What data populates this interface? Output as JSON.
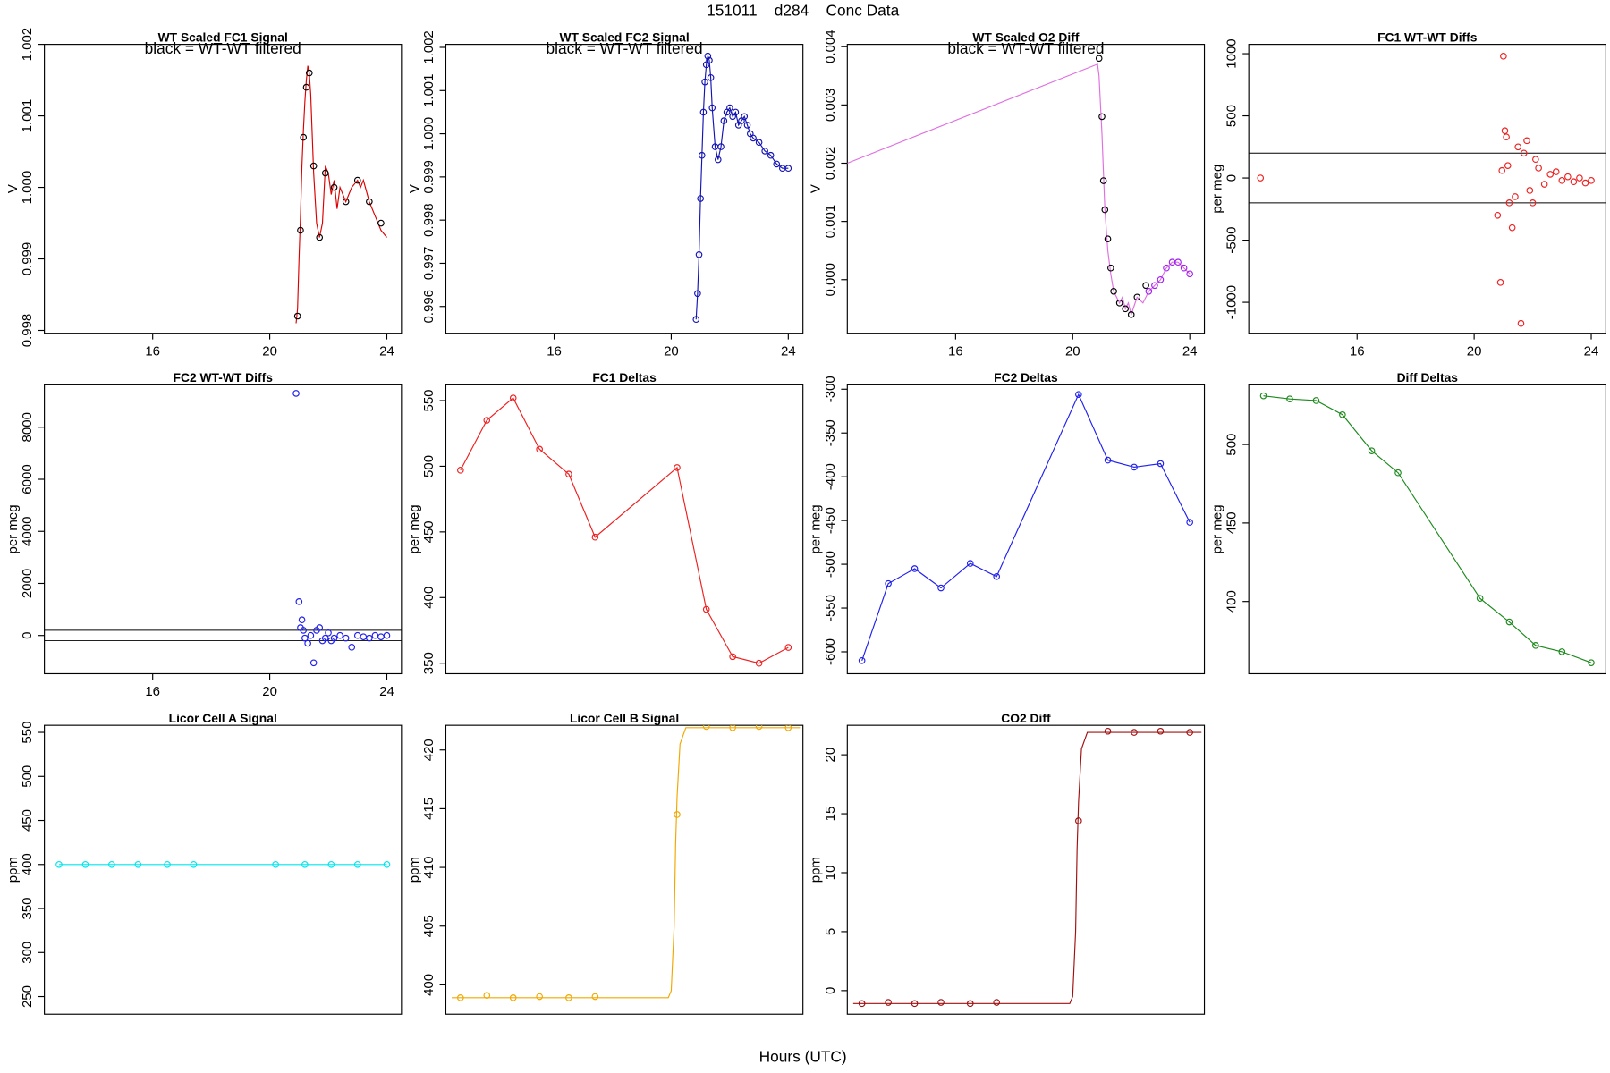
{
  "title": "151011    d284    Conc Data",
  "xlabel": "Hours (UTC)",
  "chart_data": [
    {
      "type": "line",
      "title": "WT Scaled FC1 Signal",
      "annotation": "black = WT-WT filtered",
      "ylabel": "V",
      "xlim": [
        12.3,
        24.5
      ],
      "xticks": [
        16,
        20,
        24
      ],
      "ylim": [
        0.99796,
        1.002
      ],
      "yticks": [
        0.998,
        0.999,
        {
          "value": 1,
          "label": "1.000"
        },
        1.001,
        1.002
      ],
      "series": [
        {
          "color": "#dd0000",
          "style": "line",
          "x": [
            20.9,
            20.95,
            21.0,
            21.05,
            21.1,
            21.15,
            21.2,
            21.25,
            21.3,
            21.35,
            21.4,
            21.5,
            21.6,
            21.7,
            21.8,
            21.9,
            22.0,
            22.1,
            22.2,
            22.3,
            22.4,
            22.5,
            22.6,
            22.8,
            23.0,
            23.1,
            23.2,
            23.4,
            23.6,
            23.8,
            24.0
          ],
          "values": [
            0.9981,
            0.9983,
            0.999,
            0.9996,
            1.0003,
            1.0008,
            1.0012,
            1.0015,
            1.0017,
            1.0016,
            1.0013,
            1.0002,
            0.9995,
            0.9993,
            0.9995,
            1.0003,
            1.0002,
            0.9999,
            1.0001,
            0.9997,
            1.0,
            0.9999,
            0.9998,
            1.0,
            1.0001,
            1.0,
            1.0001,
            0.9998,
            0.9996,
            0.9994,
            0.9993
          ]
        },
        {
          "color": "#000000",
          "style": "points",
          "x": [
            20.95,
            21.05,
            21.15,
            21.25,
            21.35,
            21.5,
            21.7,
            21.9,
            22.2,
            22.6,
            23.0,
            23.4,
            23.8
          ],
          "values": [
            0.9982,
            0.9994,
            1.0007,
            1.0014,
            1.0016,
            1.0003,
            0.9993,
            1.0002,
            1.0,
            0.9998,
            1.0001,
            0.9998,
            0.9995
          ]
        }
      ]
    },
    {
      "type": "line",
      "title": "WT Scaled FC2 Signal",
      "annotation": "black = WT-WT filtered",
      "ylabel": "V",
      "xlim": [
        12.3,
        24.5
      ],
      "xticks": [
        16,
        20,
        24
      ],
      "ylim": [
        0.99538,
        1.00207
      ],
      "yticks": [
        0.996,
        0.997,
        0.998,
        0.999,
        {
          "value": 1,
          "label": "1.000"
        },
        1.001,
        1.002
      ],
      "series": [
        {
          "color": "#1414b4",
          "style": "line+points",
          "x": [
            20.85,
            20.9,
            20.95,
            21.0,
            21.05,
            21.1,
            21.15,
            21.2,
            21.25,
            21.3,
            21.35,
            21.4,
            21.5,
            21.6,
            21.7,
            21.8,
            21.9,
            22.0,
            22.1,
            22.2,
            22.3,
            22.4,
            22.5,
            22.6,
            22.7,
            22.8,
            23.0,
            23.2,
            23.4,
            23.6,
            23.8,
            24.0
          ],
          "values": [
            0.9957,
            0.9963,
            0.9972,
            0.9985,
            0.9995,
            1.0005,
            1.0012,
            1.0016,
            1.0018,
            1.0017,
            1.0013,
            1.0006,
            0.9997,
            0.9994,
            0.9997,
            1.0003,
            1.0005,
            1.0006,
            1.0004,
            1.0005,
            1.0002,
            1.0003,
            1.0004,
            1.0002,
            1.0,
            0.9999,
            0.9998,
            0.9996,
            0.9995,
            0.9993,
            0.9992,
            0.9992
          ]
        }
      ]
    },
    {
      "type": "line",
      "title": "WT Scaled O2 Diff",
      "annotation": "black = WT-WT filtered",
      "ylabel": "V",
      "xlim": [
        12.3,
        24.5
      ],
      "xticks": [
        16,
        20,
        24
      ],
      "ylim": [
        -0.00092,
        0.00404
      ],
      "yticks": [
        {
          "value": 0,
          "label": "0.000"
        },
        0.001,
        0.002,
        0.003,
        0.004
      ],
      "series": [
        {
          "color": "#e070e0",
          "style": "line",
          "x": [
            12.3,
            20.85,
            20.9,
            21.0,
            21.1,
            21.2,
            21.3,
            21.4,
            21.5,
            21.6,
            21.7,
            21.8,
            21.9,
            22.0,
            22.2,
            22.4,
            22.6,
            22.8,
            23.0,
            23.2,
            23.4,
            23.6,
            23.8,
            24.0
          ],
          "values": [
            0.002,
            0.0037,
            0.0035,
            0.0025,
            0.0012,
            0.0005,
            0.0001,
            -0.0002,
            -0.0003,
            -0.0004,
            -0.0003,
            -0.0005,
            -0.0004,
            -0.0006,
            -0.0003,
            -0.0004,
            -0.0002,
            -0.0001,
            0,
            0.0002,
            0.0003,
            0.0003,
            0.0002,
            0.0001
          ]
        },
        {
          "color": "#000000",
          "style": "points",
          "x": [
            20.9,
            21.0,
            21.05,
            21.1,
            21.2,
            21.3,
            21.4,
            21.6,
            21.8,
            22.0,
            22.2,
            22.5
          ],
          "values": [
            0.0038,
            0.0028,
            0.0017,
            0.0012,
            0.0007,
            0.0002,
            -0.0002,
            -0.0004,
            -0.0005,
            -0.0006,
            -0.0003,
            -0.0001
          ]
        },
        {
          "color": "#a020f0",
          "style": "points",
          "x": [
            22.6,
            22.8,
            23.0,
            23.2,
            23.4,
            23.6,
            23.8,
            24.0
          ],
          "values": [
            -0.0002,
            -0.0001,
            0,
            0.0002,
            0.0003,
            0.0003,
            0.0002,
            0.0001
          ]
        }
      ]
    },
    {
      "type": "scatter",
      "title": "FC1 WT-WT Diffs",
      "ylabel": "per meg",
      "xlim": [
        12.3,
        24.5
      ],
      "xticks": [
        16,
        20,
        24
      ],
      "ylim": [
        -1249,
        1075
      ],
      "yticks": [
        -1000,
        -500,
        0,
        500,
        1000
      ],
      "hlines": [
        200,
        -200
      ],
      "series": [
        {
          "color": "#ee2020",
          "style": "points",
          "x": [
            12.7,
            20.8,
            20.9,
            20.95,
            21.0,
            21.05,
            21.1,
            21.15,
            21.2,
            21.3,
            21.4,
            21.5,
            21.6,
            21.7,
            21.8,
            21.9,
            22.0,
            22.1,
            22.2,
            22.4,
            22.6,
            22.8,
            23.0,
            23.2,
            23.4,
            23.6,
            23.8,
            24.0
          ],
          "values": [
            0,
            -300,
            -840,
            60,
            980,
            380,
            330,
            100,
            -200,
            -400,
            -150,
            250,
            -1170,
            200,
            300,
            -100,
            -200,
            150,
            80,
            -50,
            30,
            50,
            -20,
            10,
            -30,
            0,
            -40,
            -20
          ]
        }
      ]
    },
    {
      "type": "scatter",
      "title": "FC2 WT-WT Diffs",
      "ylabel": "per meg",
      "xlim": [
        12.3,
        24.5
      ],
      "xticks": [
        16,
        20,
        24
      ],
      "ylim": [
        -1468,
        9627
      ],
      "yticks": [
        0,
        2000,
        4000,
        6000,
        8000
      ],
      "hlines": [
        200,
        -200
      ],
      "series": [
        {
          "color": "#2020ee",
          "style": "points",
          "x": [
            20.9,
            21.0,
            21.05,
            21.1,
            21.15,
            21.2,
            21.3,
            21.4,
            21.5,
            21.6,
            21.7,
            21.8,
            21.9,
            22.0,
            22.1,
            22.2,
            22.4,
            22.6,
            22.8,
            23.0,
            23.2,
            23.4,
            23.6,
            23.8,
            24.0
          ],
          "values": [
            9300,
            1300,
            300,
            600,
            200,
            -100,
            -300,
            0,
            -1050,
            200,
            300,
            -200,
            -100,
            100,
            -200,
            -100,
            0,
            -100,
            -450,
            0,
            -50,
            -100,
            0,
            -50,
            0
          ]
        }
      ]
    },
    {
      "type": "line",
      "title": "FC1 Deltas",
      "ylabel": "per meg",
      "xlim": [
        12.3,
        24.5
      ],
      "ylim": [
        342,
        562
      ],
      "yticks": [
        350,
        400,
        450,
        500,
        550
      ],
      "series": [
        {
          "color": "#ee2020",
          "style": "line+points",
          "x": [
            12.8,
            13.7,
            14.6,
            15.5,
            16.5,
            17.4,
            20.2,
            21.2,
            22.1,
            23.0,
            24.0
          ],
          "values": [
            497,
            535,
            552,
            513,
            494,
            446,
            499,
            391,
            355,
            350,
            362
          ]
        }
      ]
    },
    {
      "type": "line",
      "title": "FC2 Deltas",
      "ylabel": "per meg",
      "xlim": [
        12.3,
        24.5
      ],
      "ylim": [
        -625,
        -295
      ],
      "yticks": [
        -600,
        -550,
        -500,
        -450,
        -400,
        -350,
        -300
      ],
      "series": [
        {
          "color": "#2020ee",
          "style": "line+points",
          "x": [
            12.8,
            13.7,
            14.6,
            15.5,
            16.5,
            17.4,
            20.2,
            21.2,
            22.1,
            23.0,
            24.0
          ],
          "values": [
            -610,
            -522,
            -505,
            -527,
            -499,
            -514,
            -306,
            -381,
            -389,
            -385,
            -452
          ]
        }
      ]
    },
    {
      "type": "line",
      "title": "Diff Deltas",
      "ylabel": "per meg",
      "xlim": [
        12.3,
        24.5
      ],
      "ylim": [
        354,
        538
      ],
      "yticks": [
        400,
        450,
        500
      ],
      "series": [
        {
          "color": "#1c8a1c",
          "style": "line+points",
          "x": [
            12.8,
            13.7,
            14.6,
            15.5,
            16.5,
            17.4,
            20.2,
            21.2,
            22.1,
            23.0,
            24.0
          ],
          "values": [
            531,
            529,
            528,
            519,
            496,
            482,
            402,
            387,
            372,
            368,
            361
          ]
        }
      ]
    },
    {
      "type": "line",
      "title": "Licor Cell A Signal",
      "ylabel": "ppm",
      "xlim": [
        12.3,
        24.5
      ],
      "ylim": [
        230,
        558
      ],
      "yticks": [
        250,
        300,
        350,
        400,
        450,
        500,
        550
      ],
      "series": [
        {
          "color": "#00e5ee",
          "style": "line+points",
          "x": [
            12.8,
            13.7,
            14.6,
            15.5,
            16.5,
            17.4,
            20.2,
            21.2,
            22.1,
            23.0,
            24.0
          ],
          "values": [
            400,
            400,
            400,
            400,
            400,
            400,
            400,
            400,
            400,
            400,
            400
          ]
        }
      ]
    },
    {
      "type": "line",
      "title": "Licor Cell B Signal",
      "ylabel": "ppm",
      "xlim": [
        12.3,
        24.5
      ],
      "ylim": [
        397.5,
        422.1
      ],
      "yticks": [
        400,
        405,
        410,
        415,
        420
      ],
      "series": [
        {
          "color": "#f0a800",
          "style": "line",
          "x": [
            12.5,
            19.9,
            20.0,
            20.1,
            20.15,
            20.2,
            20.3,
            20.5,
            24.4
          ],
          "values": [
            398.9,
            398.9,
            399.5,
            405,
            412,
            416,
            420.5,
            421.9,
            421.9
          ]
        },
        {
          "color": "#f0a800",
          "style": "points",
          "x": [
            12.8,
            13.7,
            14.6,
            15.5,
            16.5,
            17.4,
            20.2,
            21.2,
            22.1,
            23.0,
            24.0
          ],
          "values": [
            398.9,
            399.1,
            398.9,
            399,
            398.9,
            399,
            414.5,
            422,
            421.9,
            422,
            421.9
          ]
        }
      ]
    },
    {
      "type": "line",
      "title": "CO2 Diff",
      "ylabel": "ppm",
      "xlim": [
        12.3,
        24.5
      ],
      "ylim": [
        -2,
        22.5
      ],
      "yticks": [
        0,
        5,
        10,
        15,
        20
      ],
      "series": [
        {
          "color": "#a01010",
          "style": "line",
          "x": [
            12.5,
            19.9,
            20.0,
            20.1,
            20.15,
            20.2,
            20.3,
            20.5,
            24.4
          ],
          "values": [
            -1.1,
            -1.1,
            -0.5,
            5,
            12,
            16,
            20.5,
            21.9,
            21.9
          ]
        },
        {
          "color": "#a01010",
          "style": "points",
          "x": [
            12.8,
            13.7,
            14.6,
            15.5,
            16.5,
            17.4,
            20.2,
            21.2,
            22.1,
            23.0,
            24.0
          ],
          "values": [
            -1.1,
            -1.0,
            -1.1,
            -1.0,
            -1.1,
            -1.0,
            14.4,
            22,
            21.9,
            22,
            21.9
          ]
        }
      ]
    }
  ]
}
